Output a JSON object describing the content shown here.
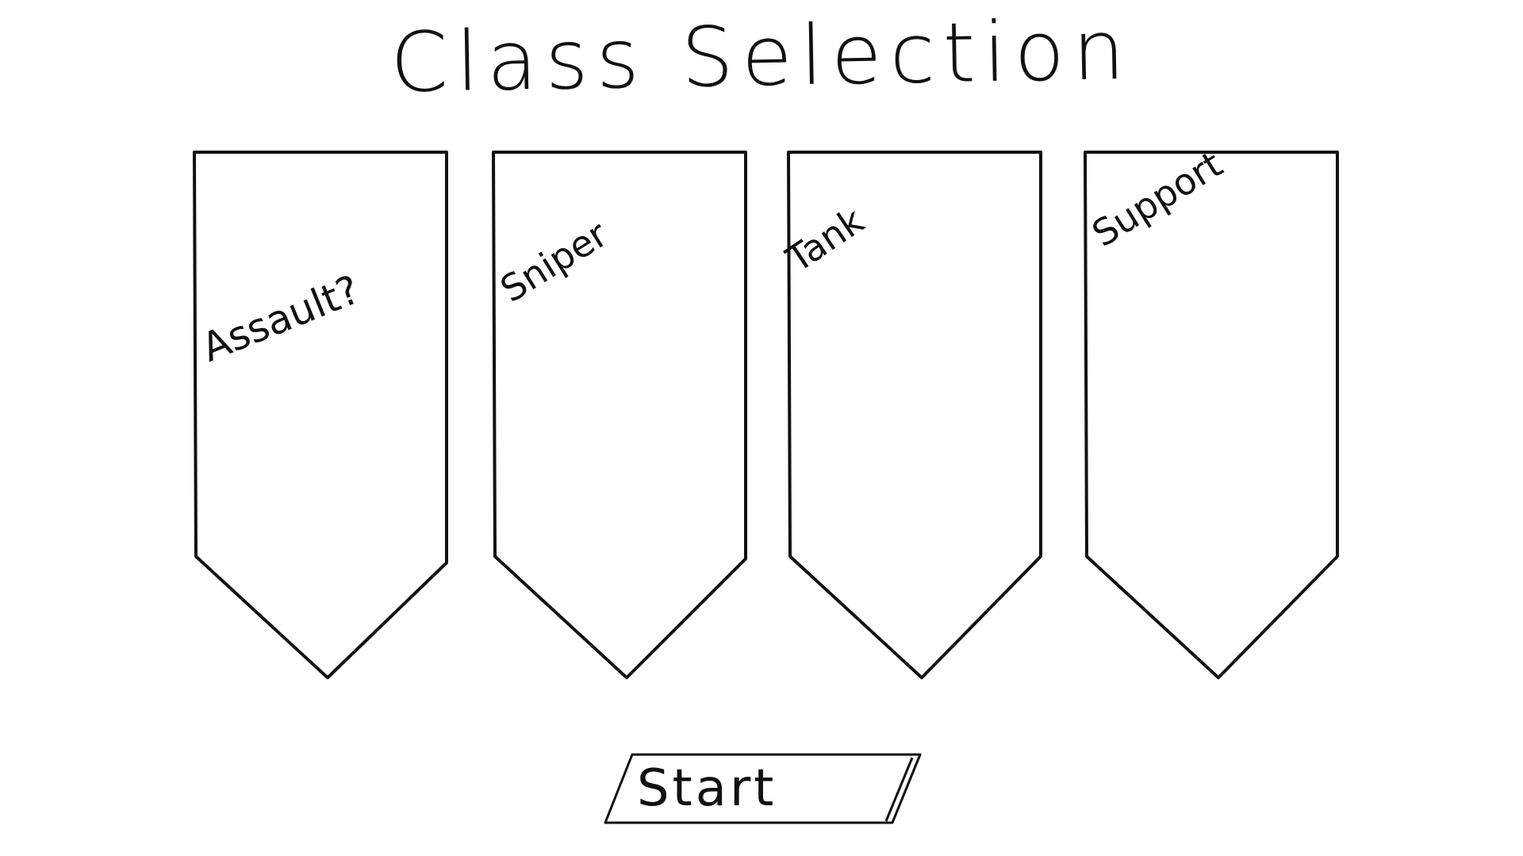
{
  "screen": {
    "title": "Class Selection"
  },
  "classes": [
    {
      "label": "Assault?"
    },
    {
      "label": "Sniper"
    },
    {
      "label": "Tank"
    },
    {
      "label": "Support"
    }
  ],
  "start_button": {
    "label": "Start"
  },
  "colors": {
    "background": "#ffffff",
    "ink": "#111111"
  }
}
